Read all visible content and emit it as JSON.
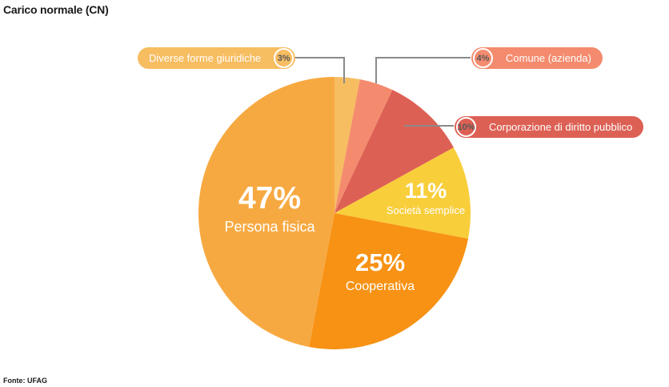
{
  "page": {
    "title": "Carico normale (CN)",
    "source": "Fonte: UFAG",
    "background_color": "#ffffff",
    "text_color": "#1a1a1a"
  },
  "chart_data": {
    "type": "pie",
    "title": "Carico normale (CN)",
    "source": "Fonte: UFAG",
    "unit": "%",
    "start_angle_deg": 0,
    "direction": "clockwise",
    "legend_position": "callout-pills-and-inside-labels",
    "connector_line_color": "#8a8a8a",
    "percent_text_color": "#57585a",
    "slices": [
      {
        "label": "Diverse forme giuridiche",
        "value": 3,
        "pct_display": "3%",
        "color": "#F7BD61",
        "label_style": "callout-pill"
      },
      {
        "label": "Comune (azienda)",
        "value": 4,
        "pct_display": "4%",
        "color": "#F48B6E",
        "label_style": "callout-pill"
      },
      {
        "label": "Corporazione di diritto pubblico",
        "value": 10,
        "pct_display": "10%",
        "color": "#DD6054",
        "label_style": "callout-pill"
      },
      {
        "label": "Società semplice",
        "value": 11,
        "pct_display": "11%",
        "color": "#F8CE3B",
        "label_style": "inside-white-text"
      },
      {
        "label": "Cooperativa",
        "value": 25,
        "pct_display": "25%",
        "color": "#F79214",
        "label_style": "inside-white-text"
      },
      {
        "label": "Persona fisica",
        "value": 47,
        "pct_display": "47%",
        "color": "#F7A941",
        "label_style": "inside-white-text"
      }
    ]
  },
  "pie_labels": {
    "persona_fisica": {
      "pct": "47%",
      "name": "Persona fisica"
    },
    "cooperativa": {
      "pct": "25%",
      "name": "Cooperativa"
    },
    "societa_semplice": {
      "pct": "11%",
      "name": "Società semplice"
    }
  },
  "callouts": [
    {
      "pct": "3%",
      "label": "Diverse forme giuridiche",
      "color": "#F7BD61",
      "badge_side": "right"
    },
    {
      "pct": "4%",
      "label": "Comune (azienda)",
      "color": "#F48B6E",
      "badge_side": "left"
    },
    {
      "pct": "10%",
      "label": "Corporazione di diritto pubblico",
      "color": "#DD6054",
      "badge_side": "left"
    }
  ]
}
